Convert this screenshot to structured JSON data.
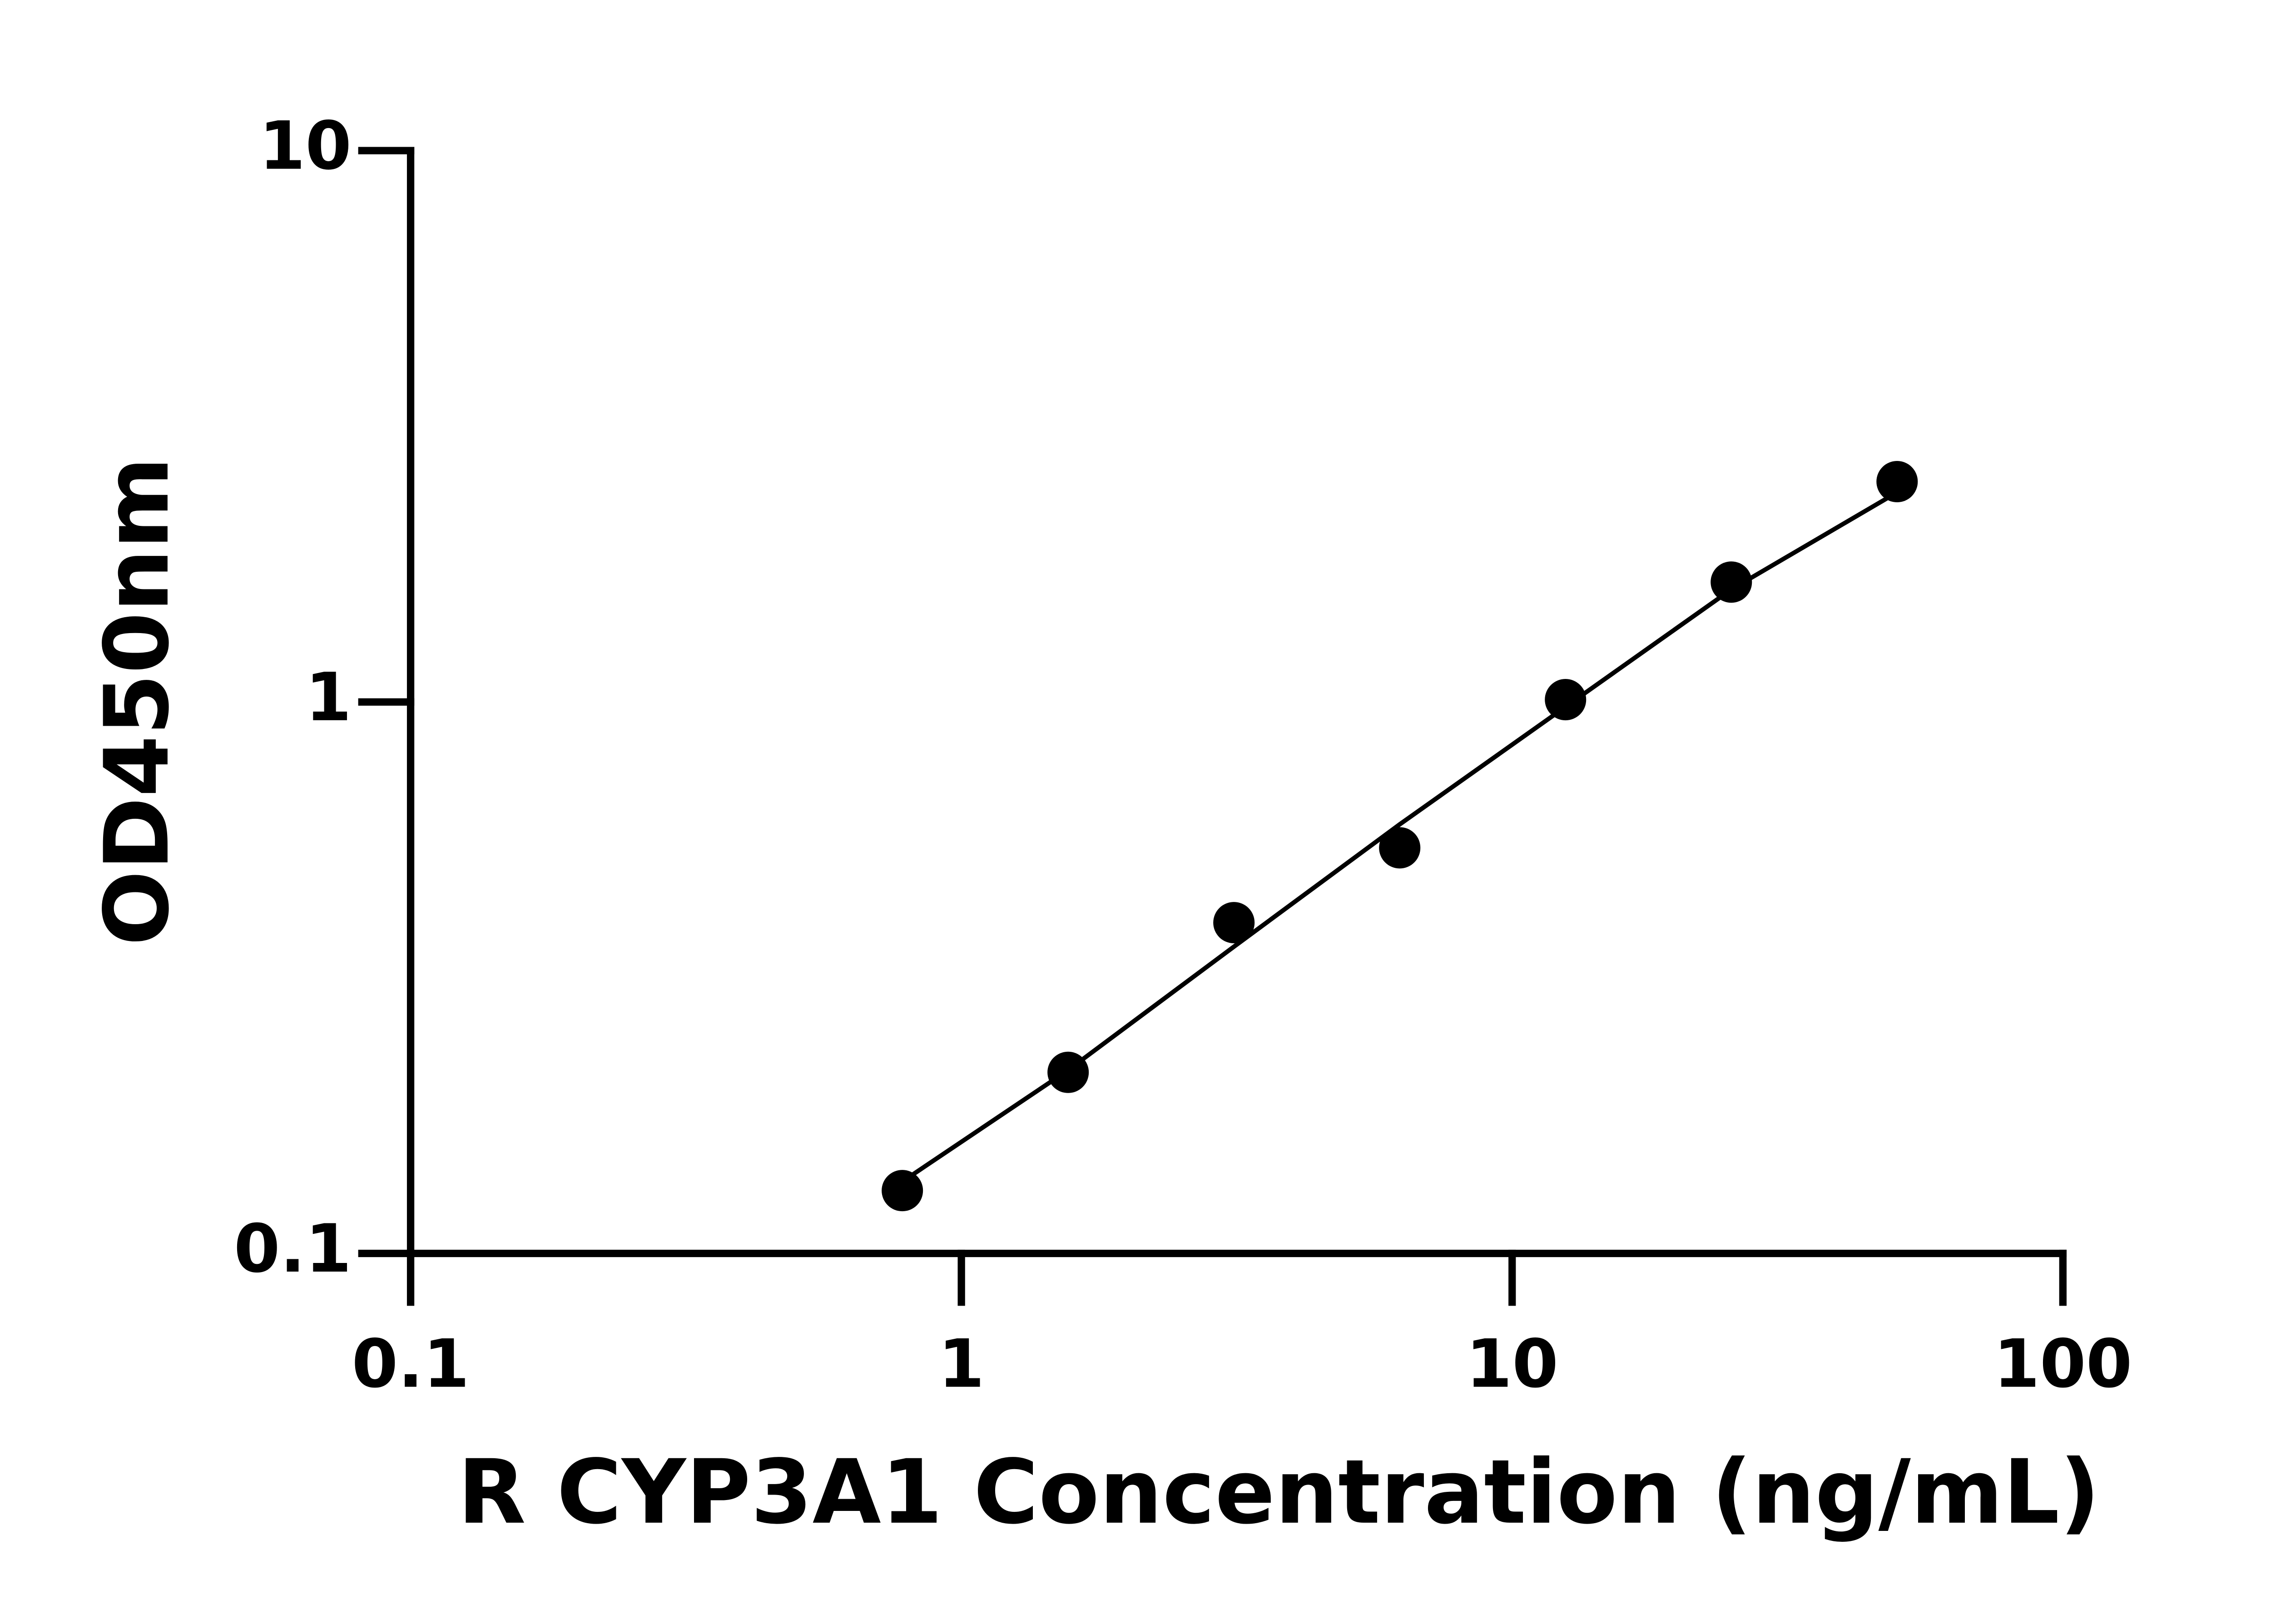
{
  "chart_data": {
    "type": "scatter",
    "xlabel": "R CYP3A1 Concentration (ng/mL)",
    "ylabel": "OD450nm",
    "xscale": "log",
    "yscale": "log",
    "xlim": [
      0.1,
      100
    ],
    "ylim": [
      0.1,
      10
    ],
    "xticks": [
      0.1,
      1,
      10,
      100
    ],
    "yticks": [
      0.1,
      1,
      10
    ],
    "series": [
      {
        "style": "markers",
        "color": "#000000",
        "x": [
          0.78125,
          1.5625,
          3.125,
          6.25,
          12.5,
          25,
          50
        ],
        "values": [
          0.13,
          0.213,
          0.398,
          0.544,
          1.01,
          1.65,
          2.51
        ]
      },
      {
        "style": "line",
        "color": "#000000",
        "x": [
          0.78125,
          1.5625,
          3.125,
          6.25,
          12.5,
          25,
          50
        ],
        "values": [
          0.135,
          0.215,
          0.36,
          0.6,
          0.98,
          1.6,
          2.4
        ]
      }
    ]
  }
}
